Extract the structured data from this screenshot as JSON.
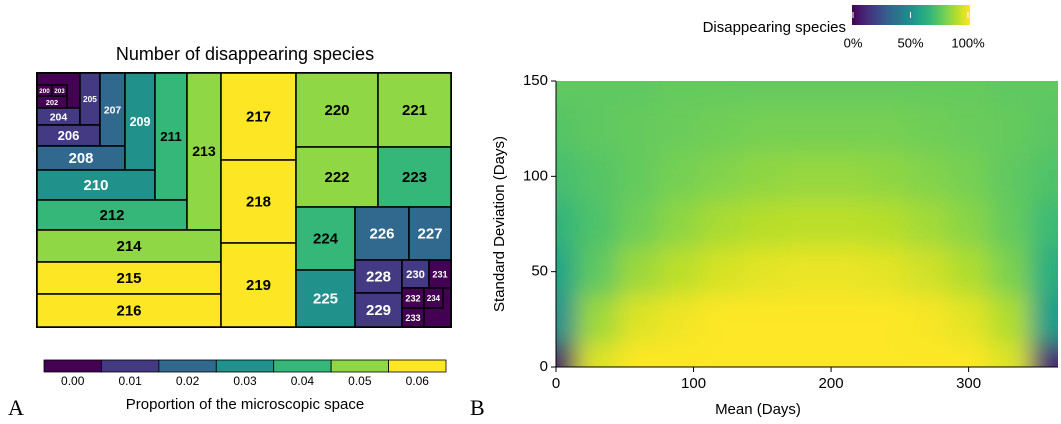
{
  "chart_data": [
    {
      "type": "treemap",
      "title": "Number of disappearing species",
      "panel": "A",
      "items": [
        {
          "label": "200",
          "value": 0.001
        },
        {
          "label": "202",
          "value": 0.003
        },
        {
          "label": "203",
          "value": 0.002
        },
        {
          "label": "204",
          "value": 0.008
        },
        {
          "label": "205",
          "value": 0.01
        },
        {
          "label": "206",
          "value": 0.012
        },
        {
          "label": "207",
          "value": 0.018
        },
        {
          "label": "208",
          "value": 0.02
        },
        {
          "label": "209",
          "value": 0.028
        },
        {
          "label": "210",
          "value": 0.03
        },
        {
          "label": "211",
          "value": 0.038
        },
        {
          "label": "212",
          "value": 0.042
        },
        {
          "label": "213",
          "value": 0.048
        },
        {
          "label": "214",
          "value": 0.052
        },
        {
          "label": "215",
          "value": 0.058
        },
        {
          "label": "216",
          "value": 0.06
        },
        {
          "label": "217",
          "value": 0.062
        },
        {
          "label": "218",
          "value": 0.061
        },
        {
          "label": "219",
          "value": 0.06
        },
        {
          "label": "220",
          "value": 0.052
        },
        {
          "label": "221",
          "value": 0.05
        },
        {
          "label": "222",
          "value": 0.048
        },
        {
          "label": "223",
          "value": 0.043
        },
        {
          "label": "224",
          "value": 0.035
        },
        {
          "label": "225",
          "value": 0.033
        },
        {
          "label": "226",
          "value": 0.022
        },
        {
          "label": "227",
          "value": 0.02
        },
        {
          "label": "228",
          "value": 0.013
        },
        {
          "label": "229",
          "value": 0.011
        },
        {
          "label": "230",
          "value": 0.006
        },
        {
          "label": "231",
          "value": 0.005
        },
        {
          "label": "232",
          "value": 0.003
        },
        {
          "label": "233",
          "value": 0.002
        },
        {
          "label": "234",
          "value": 0.001
        }
      ],
      "colorbar": {
        "title": "Proportion of the microscopic space",
        "ticks": [
          {
            "value": 0,
            "label": "0.00"
          },
          {
            "value": 0.01,
            "label": "0.01"
          },
          {
            "value": 0.02,
            "label": "0.02"
          },
          {
            "value": 0.03,
            "label": "0.03"
          },
          {
            "value": 0.04,
            "label": "0.04"
          },
          {
            "value": 0.05,
            "label": "0.05"
          },
          {
            "value": 0.06,
            "label": "0.06"
          }
        ],
        "colors": [
          "#440154",
          "#443a83",
          "#31688e",
          "#21918c",
          "#35b779",
          "#8fd744",
          "#fde725"
        ]
      }
    },
    {
      "type": "heatmap",
      "panel": "B",
      "x_label": "Mean (Days)",
      "y_label": "Standard Deviation (Days)",
      "colormap": "viridis",
      "colorbar": {
        "title": "Disappearing species",
        "zlim": [
          0,
          100
        ],
        "ticks": [
          {
            "value": 0,
            "label": "0%"
          },
          {
            "value": 50,
            "label": "50%"
          },
          {
            "value": 100,
            "label": "100%"
          }
        ]
      },
      "xlim": [
        0,
        365
      ],
      "xticks": [
        0,
        100,
        200,
        300
      ],
      "ylim": [
        0,
        150
      ],
      "yticks": [
        0,
        50,
        100,
        150
      ],
      "x": [
        0,
        30,
        60,
        90,
        120,
        150,
        180,
        210,
        240,
        270,
        300,
        330,
        360
      ],
      "y": [
        0,
        25,
        50,
        75,
        100,
        125,
        150
      ],
      "z": [
        [
          5,
          95,
          100,
          100,
          100,
          100,
          100,
          100,
          100,
          100,
          100,
          95,
          10
        ],
        [
          50,
          85,
          95,
          98,
          100,
          100,
          100,
          100,
          100,
          99,
          96,
          88,
          55
        ],
        [
          58,
          75,
          85,
          90,
          94,
          96,
          97,
          97,
          96,
          93,
          88,
          80,
          62
        ],
        [
          65,
          72,
          78,
          83,
          87,
          89,
          90,
          90,
          89,
          86,
          82,
          76,
          68
        ],
        [
          70,
          73,
          76,
          79,
          81,
          83,
          84,
          84,
          83,
          81,
          79,
          75,
          72
        ],
        [
          73,
          75,
          76,
          77,
          78,
          79,
          79,
          79,
          79,
          78,
          77,
          76,
          74
        ],
        [
          75,
          75,
          75,
          76,
          76,
          76,
          76,
          76,
          76,
          76,
          76,
          75,
          75
        ]
      ]
    }
  ]
}
